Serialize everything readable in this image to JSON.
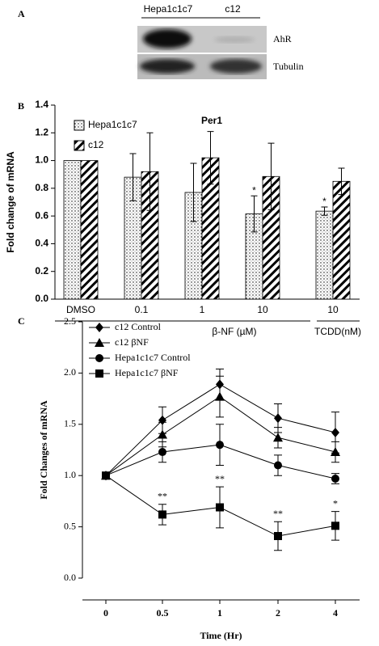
{
  "panel_labels": [
    "A",
    "B",
    "C"
  ],
  "blot": {
    "lanes": [
      "Hepa1c1c7",
      "c12"
    ],
    "bands": [
      "AhR",
      "Tubulin"
    ]
  },
  "chart_data": [
    {
      "type": "bar",
      "title": "Per1",
      "ylabel": "Fold change of mRNA",
      "categories": [
        "DMSO",
        "0.1",
        "1",
        "10",
        "10"
      ],
      "x_group_labels": [
        "β-NF (µM)",
        "TCDD(nM)"
      ],
      "series": [
        {
          "name": "Hepa1c1c7",
          "color": "#000000",
          "pattern": "dots",
          "values": [
            1.0,
            0.88,
            0.77,
            0.615,
            0.635
          ],
          "errors": [
            0,
            0.17,
            0.21,
            0.13,
            0.03
          ]
        },
        {
          "name": "c12",
          "color": "#000000",
          "pattern": "hatch",
          "values": [
            1.0,
            0.92,
            1.02,
            0.885,
            0.85
          ],
          "errors": [
            0,
            0.28,
            0.19,
            0.24,
            0.095
          ]
        }
      ],
      "annotations": [
        "*",
        "*"
      ],
      "ylim": [
        0,
        1.4
      ],
      "yticks": [
        {
          "value": 0,
          "label": "0.0"
        },
        {
          "value": 0.2,
          "label": "0.2"
        },
        {
          "value": 0.4,
          "label": "0.4"
        },
        {
          "value": 0.6,
          "label": "0.6"
        },
        {
          "value": 0.8,
          "label": "0.8"
        },
        {
          "value": 1.0,
          "label": "1.0"
        },
        {
          "value": 1.2,
          "label": "1.2"
        },
        {
          "value": 1.4,
          "label": "1.4"
        }
      ],
      "legend": "upper left"
    },
    {
      "type": "line",
      "xlabel": "Time (Hr)",
      "ylabel": "Fold Changes of mRNA",
      "categories": [
        "0",
        "0.5",
        "1",
        "2",
        "4"
      ],
      "series": [
        {
          "name": "c12 Control",
          "color": "#000000",
          "marker": "diamond",
          "values": [
            1.0,
            1.54,
            1.89,
            1.56,
            1.42
          ],
          "errors": [
            0,
            0.13,
            0.15,
            0.14,
            0.2
          ]
        },
        {
          "name": "c12 βNF",
          "color": "#000000",
          "marker": "triangle",
          "values": [
            1.0,
            1.4,
            1.77,
            1.37,
            1.23
          ],
          "errors": [
            0,
            0.12,
            0.2,
            0.1,
            0.1
          ]
        },
        {
          "name": "Hepa1c1c7 Control",
          "color": "#000000",
          "marker": "circle",
          "values": [
            1.0,
            1.23,
            1.3,
            1.1,
            0.97
          ],
          "errors": [
            0,
            0.1,
            0.2,
            0.1,
            0.05
          ]
        },
        {
          "name": "Hepa1c1c7 βNF",
          "color": "#000000",
          "marker": "square",
          "values": [
            1.0,
            0.62,
            0.69,
            0.41,
            0.51
          ],
          "errors": [
            0,
            0.1,
            0.2,
            0.14,
            0.14
          ]
        }
      ],
      "annotations": [
        "**",
        "**",
        "**",
        "*"
      ],
      "ylim": [
        0,
        2.5
      ],
      "yticks": [
        {
          "value": 0,
          "label": "0.0"
        },
        {
          "value": 0.5,
          "label": "0.5"
        },
        {
          "value": 1.0,
          "label": "1.0"
        },
        {
          "value": 1.5,
          "label": "1.5"
        },
        {
          "value": 2.0,
          "label": "2.0"
        },
        {
          "value": 2.5,
          "label": "2.5"
        }
      ],
      "legend": "upper left"
    }
  ]
}
